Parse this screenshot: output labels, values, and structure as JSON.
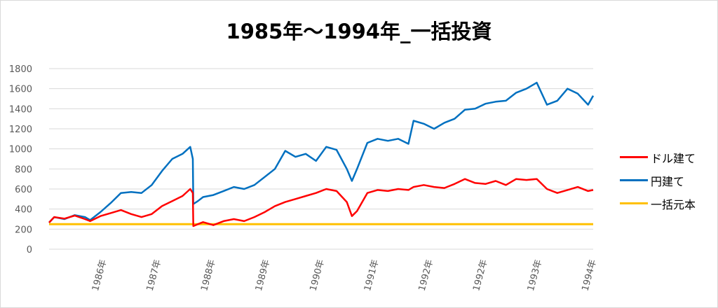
{
  "colors": {
    "dollar": "#ff0000",
    "yen": "#0070c0",
    "principal": "#ffc000",
    "grid": "#d9d9d9",
    "axis_text": "#595959"
  },
  "chart_data": {
    "type": "line",
    "title": "1985年～1994年_一括投資",
    "xlabel": "",
    "ylabel": "",
    "ylim": [
      0,
      1800
    ],
    "yticks": [
      "1800",
      "1600",
      "1400",
      "1200",
      "1000",
      "800",
      "600",
      "400",
      "200",
      "0"
    ],
    "xticks": [
      "1986年",
      "1987年",
      "1988年",
      "1989年",
      "1990年",
      "1991年",
      "1992年",
      "1992年",
      "1993年",
      "1994年"
    ],
    "grid": true,
    "legend_position": "right",
    "x": [
      1985.0,
      1985.1,
      1985.3,
      1985.5,
      1985.7,
      1985.8,
      1986.0,
      1986.2,
      1986.4,
      1986.6,
      1986.8,
      1987.0,
      1987.2,
      1987.4,
      1987.6,
      1987.75,
      1987.8,
      1987.81,
      1987.9,
      1988.0,
      1988.2,
      1988.4,
      1988.6,
      1988.8,
      1989.0,
      1989.2,
      1989.4,
      1989.6,
      1989.8,
      1990.0,
      1990.2,
      1990.4,
      1990.6,
      1990.8,
      1990.9,
      1991.0,
      1991.2,
      1991.4,
      1991.6,
      1991.8,
      1992.0,
      1992.1,
      1992.3,
      1992.5,
      1992.7,
      1992.9,
      1993.1,
      1993.3,
      1993.5,
      1993.7,
      1993.9,
      1994.1,
      1994.3,
      1994.5,
      1994.7,
      1994.9,
      1995.1,
      1995.3,
      1995.5,
      1995.6
    ],
    "series": [
      {
        "name": "ドル建て",
        "color": "#ff0000",
        "values": [
          265,
          320,
          305,
          335,
          300,
          280,
          330,
          360,
          390,
          350,
          320,
          350,
          430,
          480,
          530,
          600,
          560,
          230,
          250,
          270,
          240,
          280,
          300,
          280,
          320,
          370,
          430,
          470,
          500,
          530,
          560,
          600,
          580,
          470,
          330,
          380,
          560,
          590,
          580,
          600,
          590,
          620,
          640,
          620,
          610,
          650,
          700,
          660,
          650,
          680,
          640,
          700,
          690,
          700,
          600,
          560,
          590,
          620,
          580,
          590
        ]
      },
      {
        "name": "円建て",
        "color": "#0070c0",
        "values": [
          265,
          320,
          300,
          340,
          320,
          290,
          370,
          460,
          560,
          570,
          560,
          640,
          780,
          900,
          950,
          1020,
          900,
          450,
          480,
          520,
          540,
          580,
          620,
          600,
          640,
          720,
          800,
          980,
          920,
          950,
          880,
          1020,
          990,
          800,
          680,
          800,
          1060,
          1100,
          1080,
          1100,
          1050,
          1280,
          1250,
          1200,
          1260,
          1300,
          1390,
          1400,
          1450,
          1470,
          1480,
          1560,
          1600,
          1660,
          1440,
          1480,
          1600,
          1550,
          1440,
          1530
        ]
      },
      {
        "name": "一括元本",
        "color": "#ffc000",
        "values": [
          250,
          250,
          250,
          250,
          250,
          250,
          250,
          250,
          250,
          250,
          250,
          250,
          250,
          250,
          250,
          250,
          250,
          250,
          250,
          250,
          250,
          250,
          250,
          250,
          250,
          250,
          250,
          250,
          250,
          250,
          250,
          250,
          250,
          250,
          250,
          250,
          250,
          250,
          250,
          250,
          250,
          250,
          250,
          250,
          250,
          250,
          250,
          250,
          250,
          250,
          250,
          250,
          250,
          250,
          250,
          250,
          250,
          250,
          250,
          250
        ]
      }
    ]
  }
}
